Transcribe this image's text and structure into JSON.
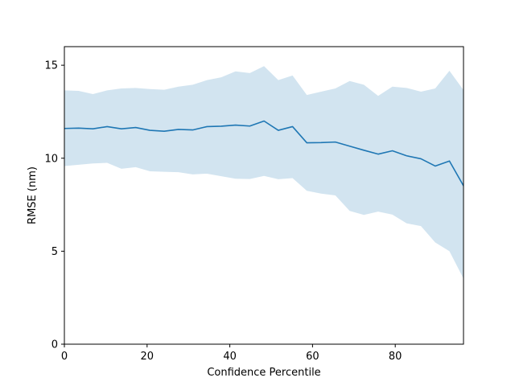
{
  "chart_data": {
    "type": "line",
    "title": "",
    "xlabel": "Confidence Percentile",
    "ylabel": "RMSE (nm)",
    "xlim": [
      0,
      96.5
    ],
    "ylim": [
      0,
      16
    ],
    "xticks": [
      0,
      20,
      40,
      60,
      80
    ],
    "yticks": [
      0,
      5,
      10,
      15
    ],
    "grid": false,
    "colors": {
      "line": "#1f77b4",
      "band": "#1f77b4",
      "band_opacity": 0.2
    },
    "x": [
      0,
      3.45,
      6.9,
      10.34,
      13.79,
      17.24,
      20.69,
      24.14,
      27.59,
      31.03,
      34.48,
      37.93,
      41.38,
      44.83,
      48.28,
      51.72,
      55.17,
      58.62,
      62.07,
      65.52,
      68.97,
      72.41,
      75.86,
      79.31,
      82.76,
      86.21,
      89.66,
      93.1,
      96.55
    ],
    "series": [
      {
        "values": [
          11.6,
          11.62,
          11.58,
          11.7,
          11.58,
          11.65,
          11.5,
          11.45,
          11.55,
          11.52,
          11.7,
          11.72,
          11.78,
          11.73,
          12.0,
          11.5,
          11.7,
          10.83,
          10.84,
          10.87,
          10.65,
          10.43,
          10.22,
          10.4,
          10.13,
          9.97,
          9.58,
          9.85,
          8.5
        ]
      }
    ],
    "band": {
      "upper": [
        13.65,
        13.62,
        13.45,
        13.65,
        13.75,
        13.78,
        13.72,
        13.68,
        13.85,
        13.95,
        14.2,
        14.35,
        14.67,
        14.58,
        14.95,
        14.2,
        14.45,
        13.4,
        13.58,
        13.75,
        14.15,
        13.95,
        13.35,
        13.85,
        13.78,
        13.58,
        13.75,
        14.7,
        13.65
      ],
      "lower": [
        9.58,
        9.65,
        9.72,
        9.75,
        9.43,
        9.52,
        9.3,
        9.27,
        9.25,
        9.13,
        9.17,
        9.03,
        8.9,
        8.88,
        9.05,
        8.87,
        8.93,
        8.25,
        8.1,
        8.0,
        7.17,
        6.95,
        7.13,
        6.97,
        6.5,
        6.35,
        5.47,
        5.0,
        3.5
      ]
    }
  }
}
